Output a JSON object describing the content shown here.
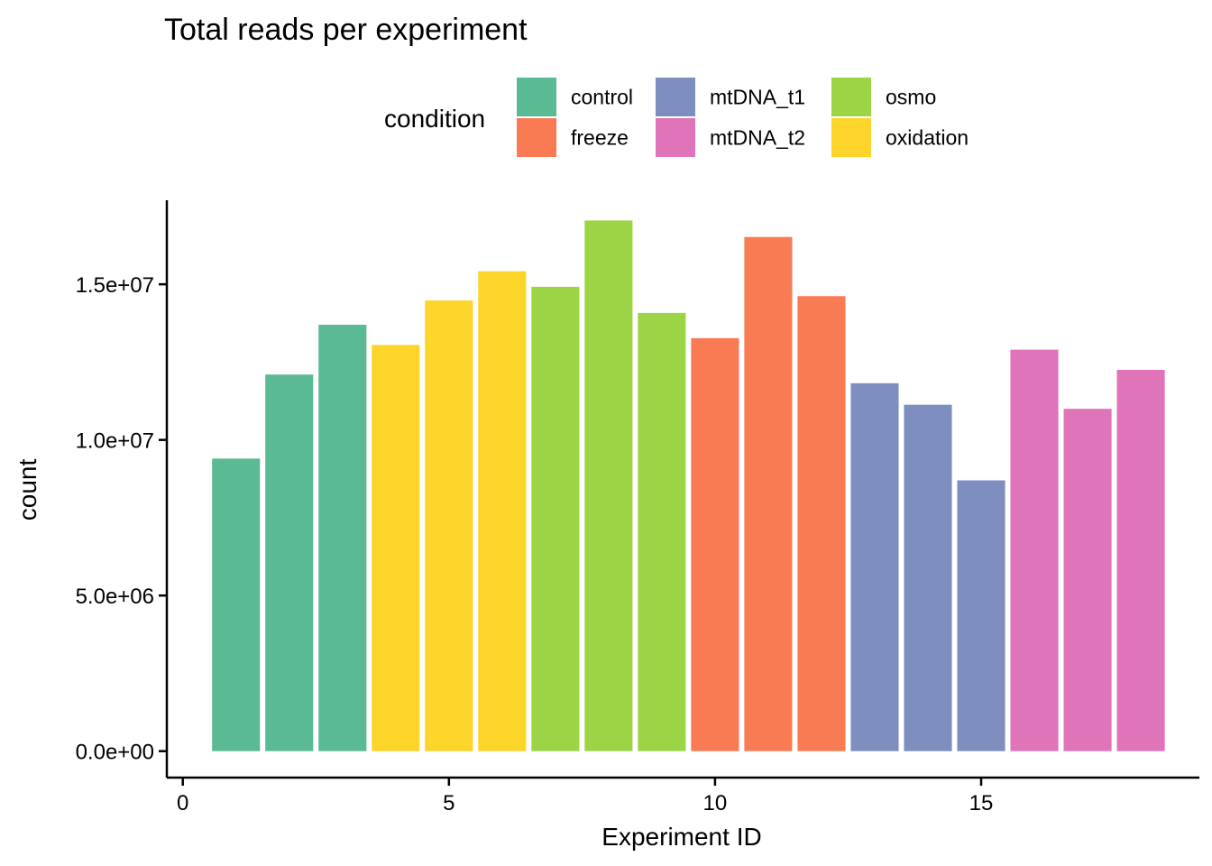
{
  "chart_data": {
    "type": "bar",
    "title": "Total reads per experiment",
    "xlabel": "Experiment ID",
    "ylabel": "count",
    "xlim": [
      -0.3,
      19.1
    ],
    "ylim": [
      -850000,
      17700000
    ],
    "x_ticks": [
      0,
      5,
      10,
      15
    ],
    "x_tick_labels": [
      "0",
      "5",
      "10",
      "15"
    ],
    "y_ticks": [
      0,
      5000000,
      10000000,
      15000000
    ],
    "y_tick_labels": [
      "0.0e+00",
      "5.0e+06",
      "1.0e+07",
      "1.5e+07"
    ],
    "grid": false,
    "legend": {
      "title": "condition",
      "placement": "top",
      "items": [
        {
          "name": "control",
          "color": "#5ABA93"
        },
        {
          "name": "freeze",
          "color": "#F97B53"
        },
        {
          "name": "mtDNA_t1",
          "color": "#7E8FBF"
        },
        {
          "name": "mtDNA_t2",
          "color": "#E074B8"
        },
        {
          "name": "osmo",
          "color": "#9BD445"
        },
        {
          "name": "oxidation",
          "color": "#FDD42A"
        }
      ]
    },
    "bars": [
      {
        "x": 1,
        "value": 9400000,
        "condition": "control"
      },
      {
        "x": 2,
        "value": 12100000,
        "condition": "control"
      },
      {
        "x": 3,
        "value": 13700000,
        "condition": "control"
      },
      {
        "x": 4,
        "value": 13050000,
        "condition": "oxidation"
      },
      {
        "x": 5,
        "value": 14480000,
        "condition": "oxidation"
      },
      {
        "x": 6,
        "value": 15420000,
        "condition": "oxidation"
      },
      {
        "x": 7,
        "value": 14920000,
        "condition": "osmo"
      },
      {
        "x": 8,
        "value": 17050000,
        "condition": "osmo"
      },
      {
        "x": 9,
        "value": 14080000,
        "condition": "osmo"
      },
      {
        "x": 10,
        "value": 13270000,
        "condition": "freeze"
      },
      {
        "x": 11,
        "value": 16520000,
        "condition": "freeze"
      },
      {
        "x": 12,
        "value": 14620000,
        "condition": "freeze"
      },
      {
        "x": 13,
        "value": 11820000,
        "condition": "mtDNA_t1"
      },
      {
        "x": 14,
        "value": 11130000,
        "condition": "mtDNA_t1"
      },
      {
        "x": 15,
        "value": 8700000,
        "condition": "mtDNA_t1"
      },
      {
        "x": 16,
        "value": 12900000,
        "condition": "mtDNA_t2"
      },
      {
        "x": 17,
        "value": 11000000,
        "condition": "mtDNA_t2"
      },
      {
        "x": 18,
        "value": 12250000,
        "condition": "mtDNA_t2"
      }
    ]
  }
}
